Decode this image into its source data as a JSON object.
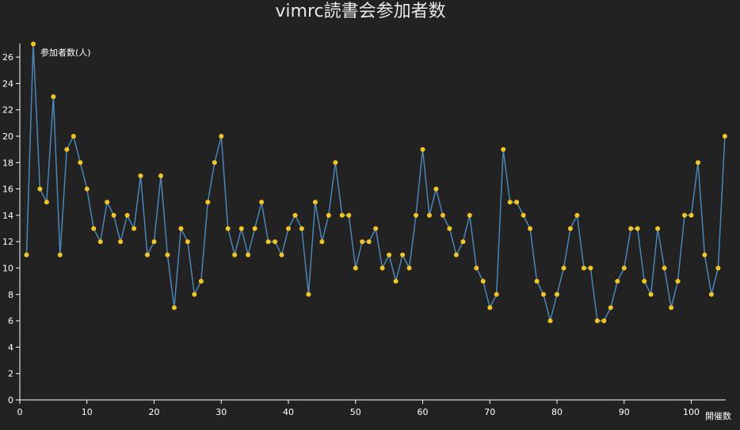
{
  "chart_data": {
    "type": "line",
    "title": "vimrc読書会参加者数",
    "xlabel": "開催数",
    "ylabel": "参加者数(人)",
    "xlim": [
      0,
      105
    ],
    "ylim": [
      0,
      27
    ],
    "x_ticks": [
      0,
      10,
      20,
      30,
      40,
      50,
      60,
      70,
      80,
      90,
      100
    ],
    "y_ticks": [
      0,
      2,
      4,
      6,
      8,
      10,
      12,
      14,
      16,
      18,
      20,
      22,
      24,
      26
    ],
    "grid": false,
    "line_color": "#4a86b8",
    "point_color": "#f5c518",
    "series": [
      {
        "x": [
          1,
          2,
          3,
          4,
          5,
          6,
          7,
          8,
          9,
          10,
          11,
          12,
          13,
          14,
          15,
          16,
          17,
          18,
          19,
          20,
          21,
          22,
          23,
          24,
          25,
          26,
          27,
          28,
          29,
          30,
          31,
          32,
          33,
          34,
          35,
          36,
          37,
          38,
          39,
          40,
          41,
          42,
          43,
          44,
          45,
          46,
          47,
          48,
          49,
          50,
          51,
          52,
          53,
          54,
          55,
          56,
          57,
          58,
          59,
          60,
          61,
          62,
          63,
          64,
          65,
          66,
          67,
          68,
          69,
          70,
          71,
          72,
          73,
          74,
          75,
          76,
          77,
          78,
          79,
          80,
          81,
          82,
          83,
          84,
          85,
          86,
          87,
          88,
          89,
          90,
          91,
          92,
          93,
          94,
          95,
          96,
          97,
          98,
          99,
          100,
          101,
          102,
          103,
          104,
          105
        ],
        "y": [
          11,
          27,
          16,
          15,
          23,
          11,
          19,
          20,
          18,
          16,
          13,
          12,
          15,
          14,
          12,
          14,
          13,
          17,
          11,
          12,
          17,
          11,
          7,
          13,
          12,
          8,
          9,
          15,
          18,
          20,
          13,
          11,
          13,
          11,
          13,
          15,
          12,
          12,
          11,
          13,
          14,
          13,
          8,
          15,
          12,
          14,
          18,
          14,
          14,
          10,
          12,
          12,
          13,
          10,
          11,
          9,
          11,
          10,
          14,
          19,
          14,
          16,
          14,
          13,
          11,
          12,
          14,
          10,
          9,
          7,
          8,
          19,
          15,
          15,
          14,
          13,
          9,
          8,
          6,
          8,
          10,
          13,
          14,
          10,
          10,
          6,
          6,
          7,
          9,
          10,
          13,
          13,
          9,
          8,
          13,
          10,
          7,
          9,
          14,
          14,
          18,
          11,
          8,
          10,
          20
        ]
      }
    ]
  }
}
